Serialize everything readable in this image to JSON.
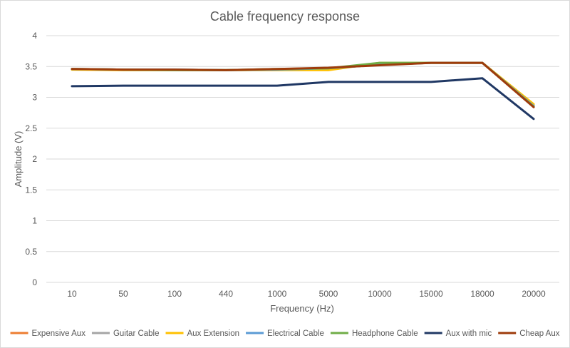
{
  "chart_data": {
    "type": "line",
    "title": "Cable frequency response",
    "xlabel": "Frequency (Hz)",
    "ylabel": "Amplitude (V)",
    "categories": [
      "10",
      "50",
      "100",
      "440",
      "1000",
      "5000",
      "10000",
      "15000",
      "18000",
      "20000"
    ],
    "ylim": [
      0,
      4
    ],
    "yticks": [
      "0",
      "0.5",
      "1",
      "1.5",
      "2",
      "2.5",
      "3",
      "3.5",
      "4"
    ],
    "grid": "horizontal",
    "legend_position": "bottom",
    "series": [
      {
        "name": "Expensive Aux",
        "color": "#ED7D31",
        "values": [
          3.46,
          3.45,
          3.45,
          3.44,
          3.45,
          3.47,
          3.53,
          3.56,
          3.56,
          2.86
        ]
      },
      {
        "name": "Guitar Cable",
        "color": "#A5A5A5",
        "values": [
          3.46,
          3.45,
          3.45,
          3.44,
          3.45,
          3.47,
          3.53,
          3.56,
          3.56,
          2.87
        ]
      },
      {
        "name": "Aux Extension",
        "color": "#FFC000",
        "values": [
          3.45,
          3.44,
          3.44,
          3.44,
          3.44,
          3.44,
          3.56,
          3.56,
          3.56,
          2.89
        ]
      },
      {
        "name": "Electrical Cable",
        "color": "#5B9BD5",
        "values": [
          3.46,
          3.45,
          3.45,
          3.44,
          3.45,
          3.47,
          3.53,
          3.56,
          3.56,
          2.86
        ]
      },
      {
        "name": "Headphone Cable",
        "color": "#70AD47",
        "values": [
          3.46,
          3.45,
          3.44,
          3.44,
          3.46,
          3.47,
          3.56,
          3.56,
          3.56,
          2.85
        ]
      },
      {
        "name": "Aux with mic",
        "color": "#203864",
        "values": [
          3.18,
          3.19,
          3.19,
          3.19,
          3.19,
          3.25,
          3.25,
          3.25,
          3.31,
          2.65
        ]
      },
      {
        "name": "Cheap Aux",
        "color": "#9E3B0B",
        "values": [
          3.46,
          3.45,
          3.45,
          3.44,
          3.46,
          3.48,
          3.52,
          3.56,
          3.56,
          2.84
        ]
      }
    ]
  }
}
